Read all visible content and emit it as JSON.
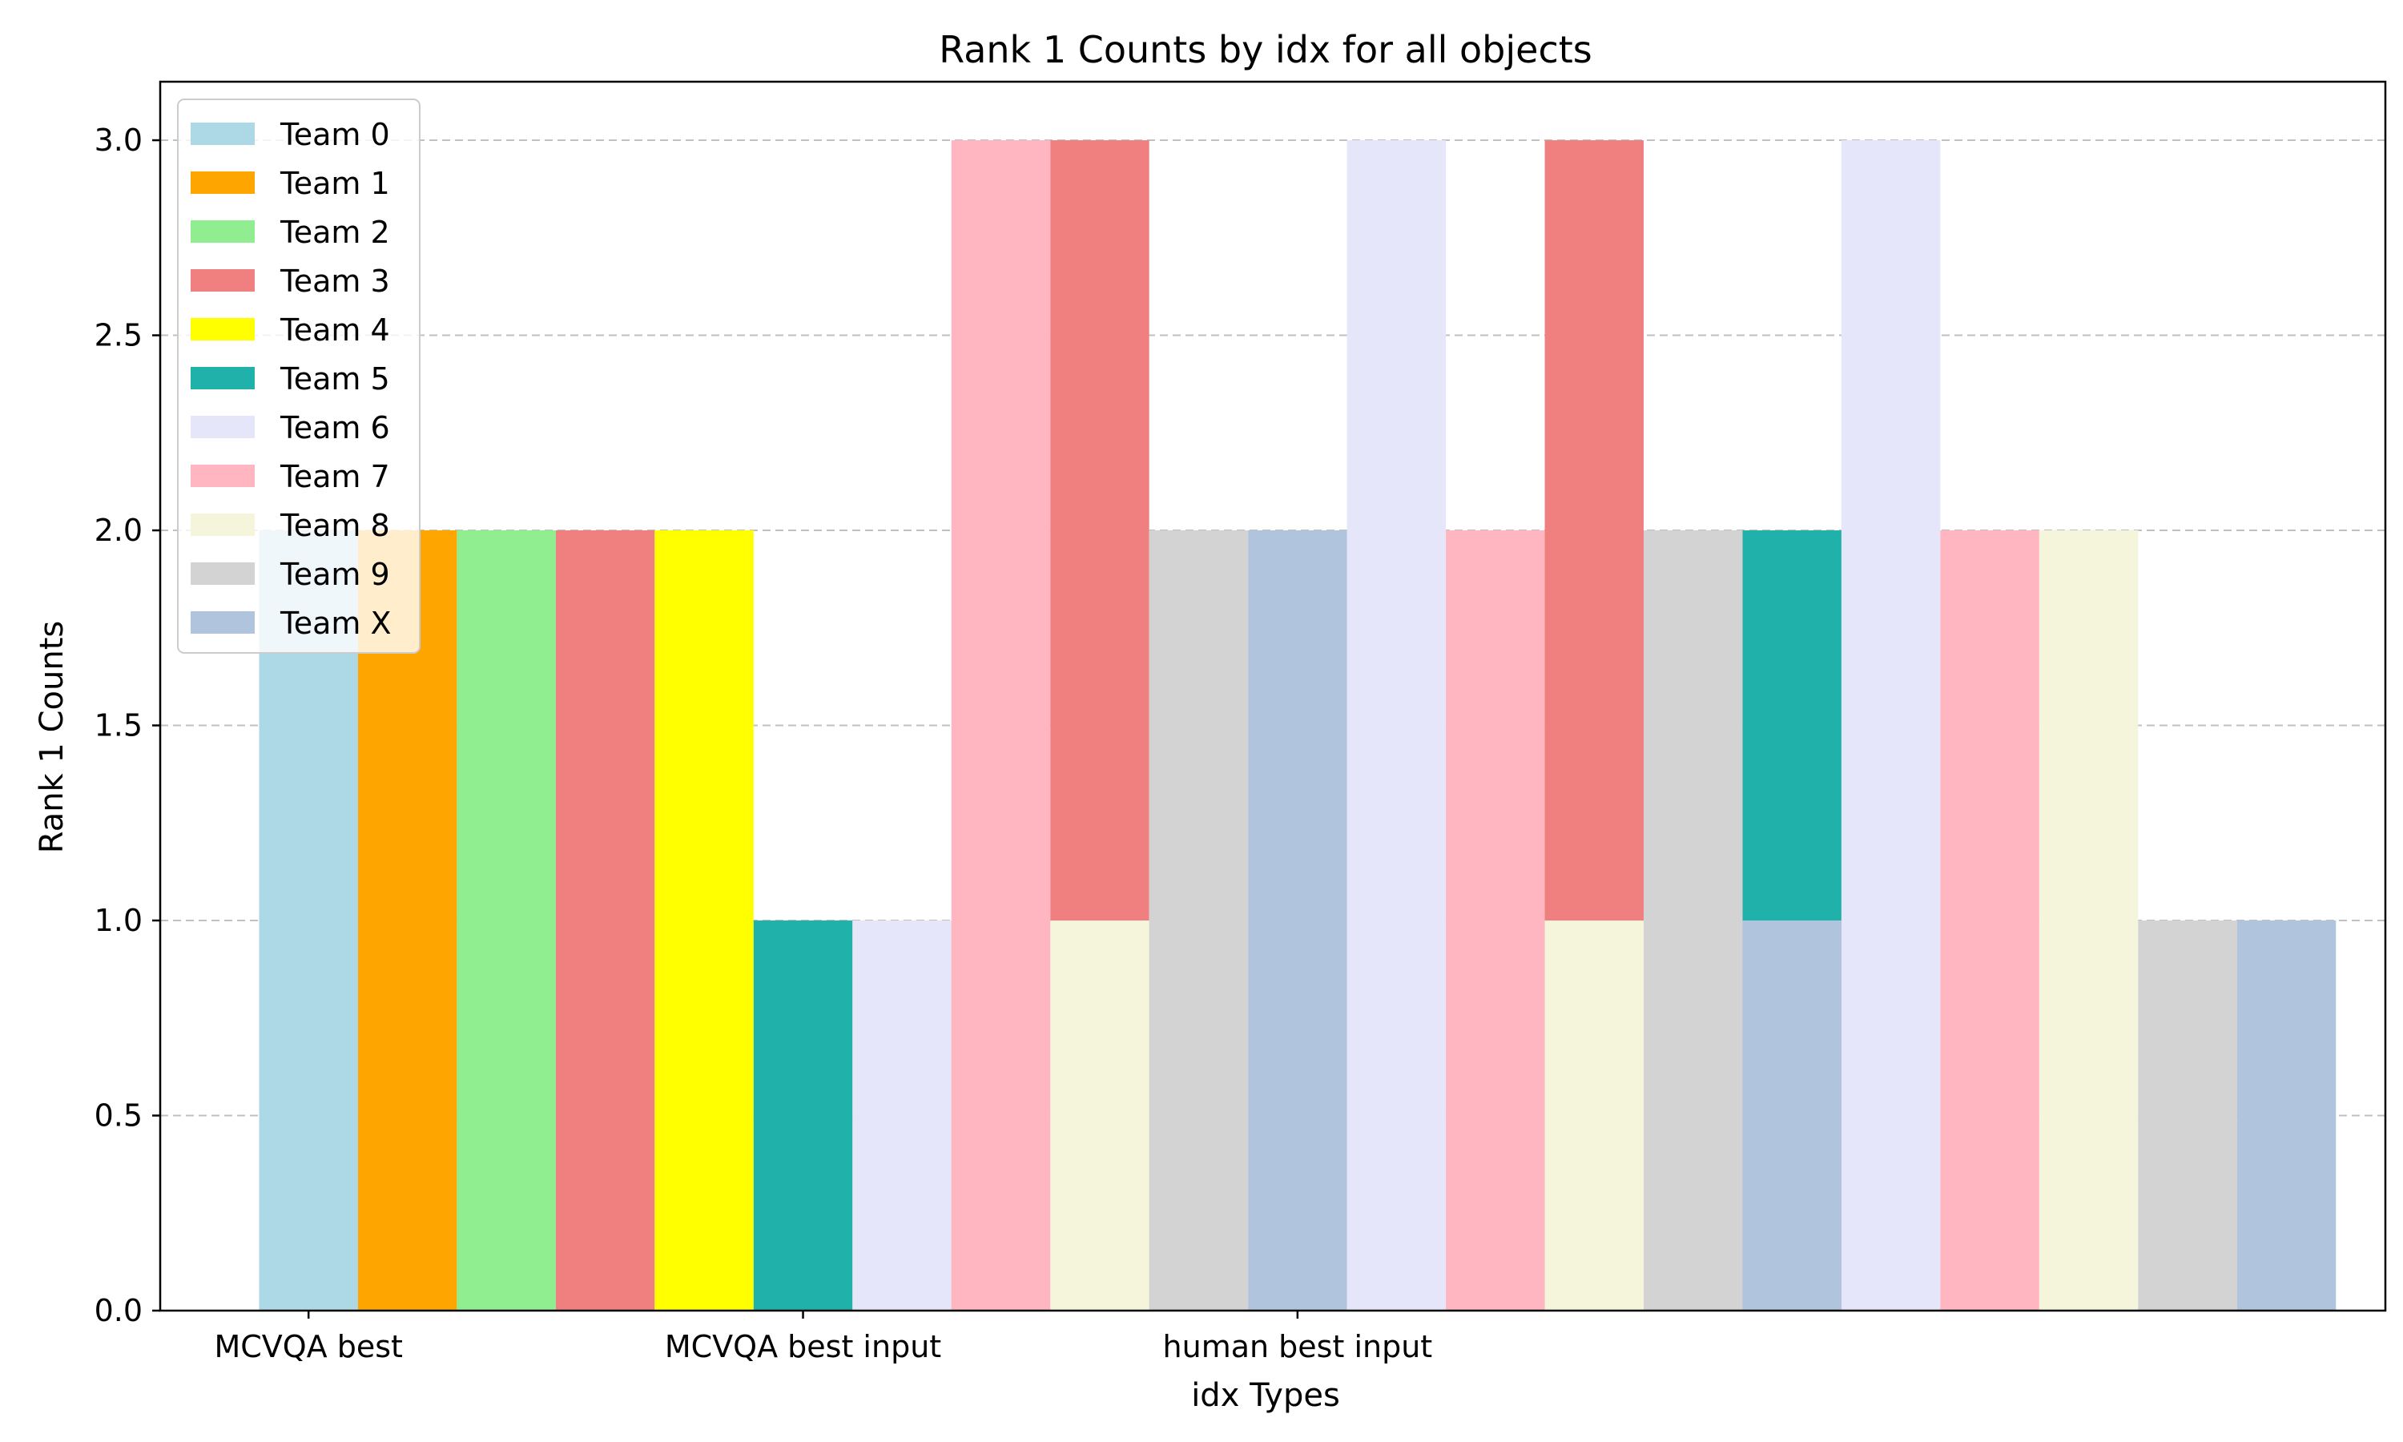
{
  "chart_data": {
    "type": "bar",
    "title": "Rank 1 Counts by idx for all objects",
    "xlabel": "idx Types",
    "ylabel": "Rank 1 Counts",
    "ylim": [
      0,
      3.15
    ],
    "yticks": [
      "0.0",
      "0.5",
      "1.0",
      "1.5",
      "2.0",
      "2.5",
      "3.0"
    ],
    "categories": [
      "MCVQA best",
      "MCVQA best input",
      "human best input"
    ],
    "grid": "y, dashed",
    "legend_position": "top-left",
    "colors": {
      "Team 0": "#add8e6",
      "Team 1": "#ffa500",
      "Team 2": "#90ee90",
      "Team 3": "#f08080",
      "Team 4": "#ffff00",
      "Team 5": "#20b2aa",
      "Team 6": "#e6e6fa",
      "Team 7": "#ffb6c1",
      "Team 8": "#f5f5dc",
      "Team 9": "#d3d3d3",
      "Team X": "#b0c4de"
    },
    "series": [
      {
        "name": "Team 0",
        "values": [
          2,
          0,
          0
        ]
      },
      {
        "name": "Team 1",
        "values": [
          2,
          1,
          0
        ]
      },
      {
        "name": "Team 2",
        "values": [
          2,
          0,
          0
        ]
      },
      {
        "name": "Team 3",
        "values": [
          2,
          3,
          3
        ]
      },
      {
        "name": "Team 4",
        "values": [
          2,
          0,
          0
        ]
      },
      {
        "name": "Team 5",
        "values": [
          1,
          0,
          2
        ]
      },
      {
        "name": "Team 6",
        "values": [
          1,
          3,
          3
        ]
      },
      {
        "name": "Team 7",
        "values": [
          3,
          2,
          2
        ]
      },
      {
        "name": "Team 8",
        "values": [
          1,
          1,
          2
        ]
      },
      {
        "name": "Team 9",
        "values": [
          2,
          2,
          1
        ]
      },
      {
        "name": "Team X",
        "values": [
          2,
          1,
          1
        ]
      }
    ]
  }
}
